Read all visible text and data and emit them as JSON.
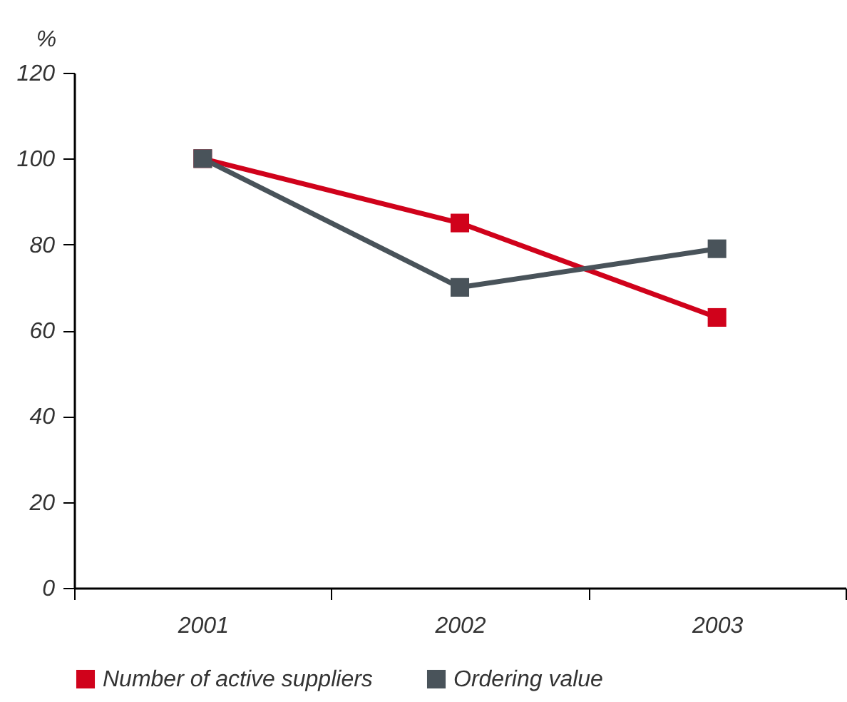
{
  "chart_data": {
    "type": "line",
    "ylabel": "%",
    "categories": [
      "2001",
      "2002",
      "2003"
    ],
    "series": [
      {
        "name": "Number of active suppliers",
        "color": "#d0021b",
        "values": [
          100,
          85,
          63
        ]
      },
      {
        "name": "Ordering value",
        "color": "#49535a",
        "values": [
          100,
          70,
          79
        ]
      }
    ],
    "ylim": [
      0,
      120
    ],
    "yticks": [
      0,
      20,
      40,
      60,
      80,
      100,
      120
    ],
    "grid": false,
    "legend": "bottom",
    "marker": "square",
    "line_style": "solid"
  }
}
